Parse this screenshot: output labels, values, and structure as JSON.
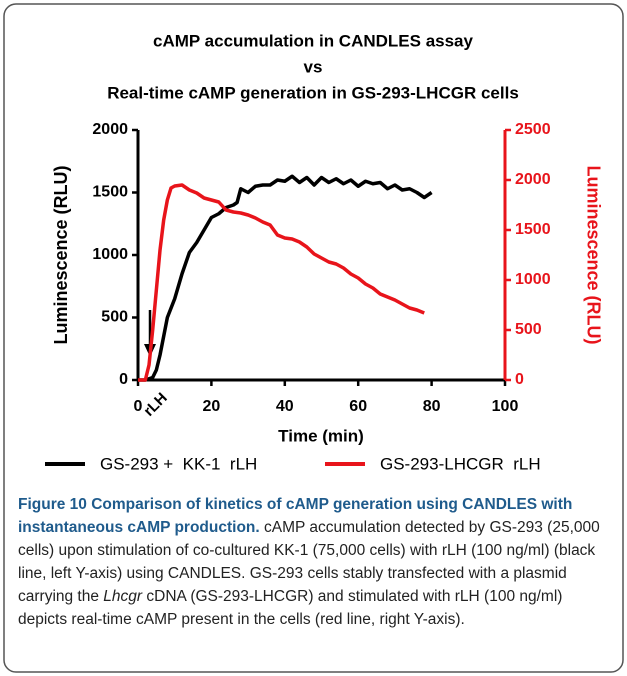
{
  "chart_data": {
    "type": "line",
    "title": [
      "cAMP accumulation in CANDLES assay",
      "vs",
      "Real-time cAMP generation in GS-293-LHCGR cells"
    ],
    "xlabel": "Time (min)",
    "ylabel": "Luminescence (RLU)",
    "y2label": "Luminescence (RLU)",
    "xlim": [
      0,
      100
    ],
    "xticks": [
      0,
      20,
      40,
      60,
      80,
      100
    ],
    "ylim": [
      0,
      2000
    ],
    "yticks": [
      0,
      500,
      1000,
      1500,
      2000
    ],
    "y2lim": [
      0,
      2500
    ],
    "y2ticks": [
      0,
      500,
      1000,
      1500,
      2000,
      2500
    ],
    "annotation": "rLH",
    "series": [
      {
        "name": "GS-293 +  KK-1  rLH",
        "color": "#000000",
        "x": [
          0,
          2,
          4,
          5,
          6,
          7,
          8,
          10,
          12,
          14,
          16,
          18,
          20,
          22,
          24,
          26,
          27,
          28,
          30,
          32,
          34,
          36,
          38,
          40,
          42,
          44,
          46,
          48,
          50,
          52,
          54,
          56,
          58,
          60,
          62,
          64,
          66,
          68,
          70,
          72,
          74,
          76,
          78,
          80
        ],
        "values": [
          0,
          0,
          20,
          80,
          200,
          350,
          500,
          650,
          850,
          1020,
          1100,
          1200,
          1300,
          1330,
          1380,
          1400,
          1420,
          1530,
          1500,
          1550,
          1560,
          1560,
          1600,
          1590,
          1630,
          1580,
          1620,
          1560,
          1620,
          1580,
          1610,
          1570,
          1600,
          1550,
          1590,
          1570,
          1580,
          1530,
          1560,
          1520,
          1530,
          1500,
          1460,
          1500
        ]
      },
      {
        "name": "GS-293-LHCGR  rLH",
        "color": "#e8141b",
        "axis": "y2",
        "x": [
          0,
          2,
          3,
          4,
          5,
          6,
          7,
          8,
          9,
          10,
          12,
          14,
          16,
          18,
          20,
          22,
          24,
          26,
          28,
          30,
          32,
          34,
          36,
          38,
          40,
          42,
          44,
          46,
          48,
          50,
          52,
          54,
          56,
          58,
          60,
          62,
          64,
          66,
          68,
          70,
          72,
          74,
          76,
          78
        ],
        "values": [
          0,
          0,
          150,
          500,
          900,
          1300,
          1600,
          1800,
          1920,
          1940,
          1950,
          1900,
          1870,
          1820,
          1800,
          1780,
          1700,
          1680,
          1670,
          1650,
          1620,
          1580,
          1550,
          1450,
          1420,
          1410,
          1380,
          1330,
          1260,
          1220,
          1180,
          1160,
          1120,
          1060,
          1020,
          960,
          920,
          860,
          830,
          800,
          760,
          720,
          700,
          670
        ]
      }
    ]
  },
  "caption": {
    "label": "Figure 10",
    "title": "Comparison of kinetics of cAMP generation using CANDLES with instantaneous cAMP production.",
    "text_before": "cAMP accumulation detected by GS-293 (25,000 cells) upon stimulation of co-cultured KK-1 (75,000 cells) with rLH (100 ng/ml) (black line, left Y-axis) using CANDLES. GS-293 cells stably transfected with a plasmid carrying the",
    "italic": "Lhcgr",
    "text_after": "cDNA (GS-293-LHCGR) and stimulated with rLH (100 ng/ml) depicts real-time cAMP present in the cells (red line, right Y-axis)."
  }
}
